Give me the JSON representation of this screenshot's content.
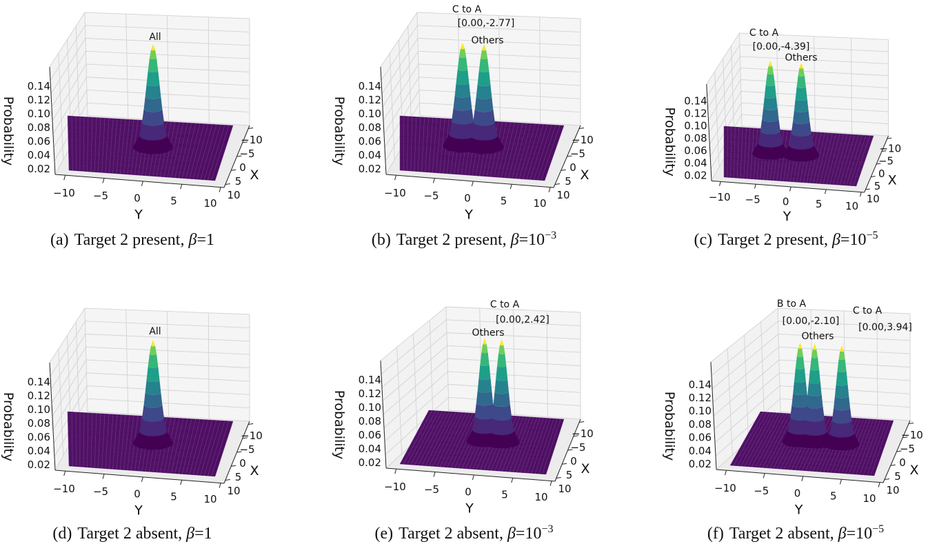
{
  "chart_data": [
    {
      "type": "surface3d",
      "caption": {
        "label": "(a)",
        "text": "Target 2 present,",
        "beta_symbol": "β",
        "equals": "=",
        "beta_base": "1",
        "beta_exponent": ""
      },
      "xlabel": "X",
      "ylabel": "Y",
      "zlabel": "Probability",
      "xlim": [
        -10,
        10
      ],
      "ylim": [
        -10,
        10
      ],
      "zlim": [
        0,
        0.16
      ],
      "x_ticks": [
        -10,
        -5,
        0,
        5,
        10
      ],
      "x_tick_labels": [
        "−10",
        "−5",
        "0",
        "5",
        "10"
      ],
      "y_ticks": [
        -10,
        -5,
        0,
        5,
        10
      ],
      "y_tick_labels": [
        "−10",
        "−5",
        "0",
        "5",
        "10"
      ],
      "z_ticks": [
        0.02,
        0.04,
        0.06,
        0.08,
        0.1,
        0.12,
        0.14
      ],
      "z_tick_labels": [
        "0.02",
        "0.04",
        "0.06",
        "0.08",
        "0.10",
        "0.12",
        "0.14"
      ],
      "colormap": "viridis",
      "peaks": [
        {
          "x": 0,
          "y": 0,
          "height": 0.15,
          "sigma": 0.85
        }
      ],
      "annotations": [
        {
          "text": "All"
        }
      ]
    },
    {
      "type": "surface3d",
      "caption": {
        "label": "(b)",
        "text": "Target 2 present,",
        "beta_symbol": "β",
        "equals": "=",
        "beta_base": "10",
        "beta_exponent": "−3"
      },
      "xlabel": "X",
      "ylabel": "Y",
      "zlabel": "Probability",
      "xlim": [
        -10,
        10
      ],
      "ylim": [
        -10,
        10
      ],
      "zlim": [
        0,
        0.16
      ],
      "x_ticks": [
        -10,
        -5,
        0,
        5,
        10
      ],
      "x_tick_labels": [
        "−10",
        "−5",
        "0",
        "5",
        "10"
      ],
      "y_ticks": [
        -10,
        -5,
        0,
        5,
        10
      ],
      "y_tick_labels": [
        "−10",
        "−5",
        "0",
        "5",
        "10"
      ],
      "z_ticks": [
        0.02,
        0.04,
        0.06,
        0.08,
        0.1,
        0.12,
        0.14
      ],
      "z_tick_labels": [
        "0.02",
        "0.04",
        "0.06",
        "0.08",
        "0.10",
        "0.12",
        "0.14"
      ],
      "colormap": "viridis",
      "peaks": [
        {
          "x": 0,
          "y": -2.77,
          "height": 0.15,
          "sigma": 0.85
        },
        {
          "x": 0,
          "y": 0,
          "height": 0.15,
          "sigma": 0.85
        }
      ],
      "annotations": [
        {
          "text": "C to A"
        },
        {
          "text": "[0.00,-2.77]"
        },
        {
          "text": "Others"
        }
      ]
    },
    {
      "type": "surface3d",
      "caption": {
        "label": "(c)",
        "text": "Target 2 present,",
        "beta_symbol": "β",
        "equals": "=",
        "beta_base": "10",
        "beta_exponent": "−5"
      },
      "xlabel": "X",
      "ylabel": "Y",
      "zlabel": "Probability",
      "xlim": [
        -10,
        10
      ],
      "ylim": [
        -10,
        10
      ],
      "zlim": [
        0,
        0.16
      ],
      "x_ticks": [
        -10,
        -5,
        0,
        5,
        10
      ],
      "x_tick_labels": [
        "−10",
        "−5",
        "0",
        "5",
        "10"
      ],
      "y_ticks": [
        -10,
        -5,
        0,
        5,
        10
      ],
      "y_tick_labels": [
        "−10",
        "−5",
        "0",
        "5",
        "10"
      ],
      "z_ticks": [
        0.02,
        0.04,
        0.06,
        0.08,
        0.1,
        0.12,
        0.14
      ],
      "z_tick_labels": [
        "0.02",
        "0.04",
        "0.06",
        "0.08",
        "0.10",
        "0.12",
        "0.14"
      ],
      "colormap": "viridis",
      "peaks": [
        {
          "x": 0,
          "y": -4.39,
          "height": 0.15,
          "sigma": 0.85
        },
        {
          "x": 0,
          "y": 0,
          "height": 0.15,
          "sigma": 0.85
        }
      ],
      "annotations": [
        {
          "text": "C to A"
        },
        {
          "text": "[0.00,-4.39]"
        },
        {
          "text": "Others"
        }
      ]
    },
    {
      "type": "surface3d",
      "caption": {
        "label": "(d)",
        "text": "Target 2 absent,",
        "beta_symbol": "β",
        "equals": "=",
        "beta_base": "1",
        "beta_exponent": ""
      },
      "xlabel": "X",
      "ylabel": "Y",
      "zlabel": "Probability",
      "xlim": [
        -10,
        10
      ],
      "ylim": [
        -10,
        10
      ],
      "zlim": [
        0,
        0.16
      ],
      "x_ticks": [
        -10,
        -5,
        0,
        5,
        10
      ],
      "x_tick_labels": [
        "−10",
        "−5",
        "0",
        "5",
        "10"
      ],
      "y_ticks": [
        -10,
        -5,
        0,
        5,
        10
      ],
      "y_tick_labels": [
        "−10",
        "−5",
        "0",
        "5",
        "10"
      ],
      "z_ticks": [
        0.02,
        0.04,
        0.06,
        0.08,
        0.1,
        0.12,
        0.14
      ],
      "z_tick_labels": [
        "0.02",
        "0.04",
        "0.06",
        "0.08",
        "0.10",
        "0.12",
        "0.14"
      ],
      "colormap": "viridis",
      "peaks": [
        {
          "x": 0,
          "y": 0,
          "height": 0.15,
          "sigma": 0.85
        }
      ],
      "annotations": [
        {
          "text": "All"
        }
      ]
    },
    {
      "type": "surface3d",
      "caption": {
        "label": "(e)",
        "text": "Target 2 absent,",
        "beta_symbol": "β",
        "equals": "=",
        "beta_base": "10",
        "beta_exponent": "−3"
      },
      "xlabel": "X",
      "ylabel": "Y",
      "zlabel": "Probability",
      "xlim": [
        -10,
        10
      ],
      "ylim": [
        -10,
        10
      ],
      "zlim": [
        0,
        0.16
      ],
      "x_ticks": [
        -10,
        -5,
        0,
        5,
        10
      ],
      "x_tick_labels": [
        "−10",
        "−5",
        "0",
        "5",
        "10"
      ],
      "y_ticks": [
        -10,
        -5,
        0,
        5,
        10
      ],
      "y_tick_labels": [
        "−10",
        "−5",
        "0",
        "5",
        "10"
      ],
      "z_ticks": [
        0.02,
        0.04,
        0.06,
        0.08,
        0.1,
        0.12,
        0.14
      ],
      "z_tick_labels": [
        "0.02",
        "0.04",
        "0.06",
        "0.08",
        "0.10",
        "0.12",
        "0.14"
      ],
      "colormap": "viridis",
      "peaks": [
        {
          "x": 0,
          "y": 0,
          "height": 0.15,
          "sigma": 0.85
        },
        {
          "x": 0,
          "y": 2.42,
          "height": 0.15,
          "sigma": 0.85
        }
      ],
      "annotations": [
        {
          "text": "C to A"
        },
        {
          "text": "[0.00,2.42]"
        },
        {
          "text": "Others"
        }
      ]
    },
    {
      "type": "surface3d",
      "caption": {
        "label": "(f)",
        "text": "Target 2 absent,",
        "beta_symbol": "β",
        "equals": "=",
        "beta_base": "10",
        "beta_exponent": "−5"
      },
      "xlabel": "X",
      "ylabel": "Y",
      "zlabel": "Probability",
      "xlim": [
        -10,
        10
      ],
      "ylim": [
        -10,
        10
      ],
      "zlim": [
        0,
        0.16
      ],
      "x_ticks": [
        -10,
        -5,
        0,
        5,
        10
      ],
      "x_tick_labels": [
        "−10",
        "−5",
        "0",
        "5",
        "10"
      ],
      "y_ticks": [
        -10,
        -5,
        0,
        5,
        10
      ],
      "y_tick_labels": [
        "−10",
        "−5",
        "0",
        "5",
        "10"
      ],
      "z_ticks": [
        0.02,
        0.04,
        0.06,
        0.08,
        0.1,
        0.12,
        0.14
      ],
      "z_tick_labels": [
        "0.02",
        "0.04",
        "0.06",
        "0.08",
        "0.10",
        "0.12",
        "0.14"
      ],
      "colormap": "viridis",
      "peaks": [
        {
          "x": 0,
          "y": -2.1,
          "height": 0.15,
          "sigma": 0.85
        },
        {
          "x": 0,
          "y": 0,
          "height": 0.15,
          "sigma": 0.85
        },
        {
          "x": 0,
          "y": 3.94,
          "height": 0.15,
          "sigma": 0.85
        }
      ],
      "annotations": [
        {
          "text": "B to A"
        },
        {
          "text": "[0.00,-2.10]"
        },
        {
          "text": "C to A"
        },
        {
          "text": "[0.00,3.94]"
        },
        {
          "text": "Others"
        }
      ]
    }
  ]
}
